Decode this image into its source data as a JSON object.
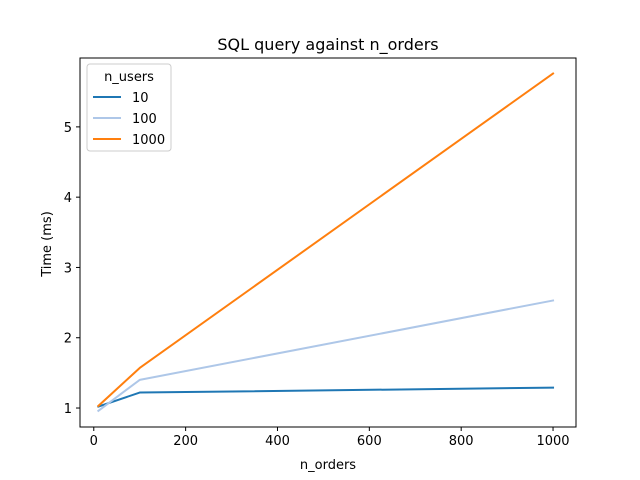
{
  "chart_data": {
    "type": "line",
    "title": "SQL query against n_orders",
    "xlabel": "n_orders",
    "ylabel": "Time (ms)",
    "xlim": [
      -30,
      1050
    ],
    "ylim": [
      0.73,
      5.98
    ],
    "xticks": [
      0,
      200,
      400,
      600,
      800,
      1000
    ],
    "yticks": [
      1,
      2,
      3,
      4,
      5
    ],
    "legend": {
      "title": "n_users",
      "placement": "top-left"
    },
    "x": [
      10,
      100,
      1000
    ],
    "series": [
      {
        "name": "10",
        "color": "#1f77b4",
        "values": [
          1.02,
          1.22,
          1.29
        ]
      },
      {
        "name": "100",
        "color": "#aec7e8",
        "values": [
          0.96,
          1.4,
          2.53
        ]
      },
      {
        "name": "1000",
        "color": "#ff7f0e",
        "values": [
          1.03,
          1.57,
          5.76
        ]
      }
    ]
  }
}
